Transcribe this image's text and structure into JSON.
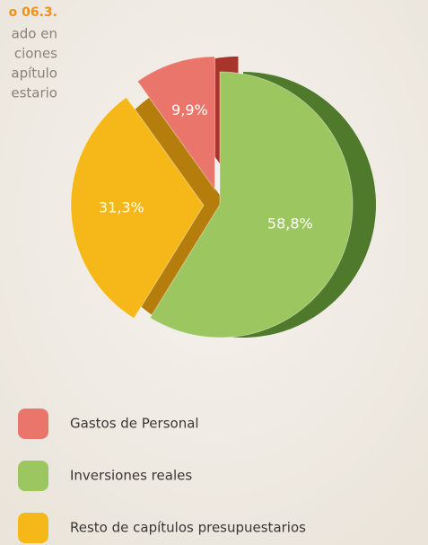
{
  "chart_data": {
    "type": "pie",
    "title": "o 06.3.",
    "subtitle_lines": [
      "ado en",
      "ciones",
      "apítulo",
      "estario"
    ],
    "categories": [
      "Gastos de Personal",
      "Inversiones reales",
      "Resto de capítulos presupuestarios"
    ],
    "values": [
      9.9,
      58.8,
      31.3
    ],
    "value_labels": [
      "9,9%",
      "58,8%",
      "31,3%"
    ],
    "colors": [
      "#ea766b",
      "#9cc660",
      "#f5b818"
    ],
    "side_colors": [
      "#a8352c",
      "#4f7a2c",
      "#b57d0c"
    ]
  }
}
